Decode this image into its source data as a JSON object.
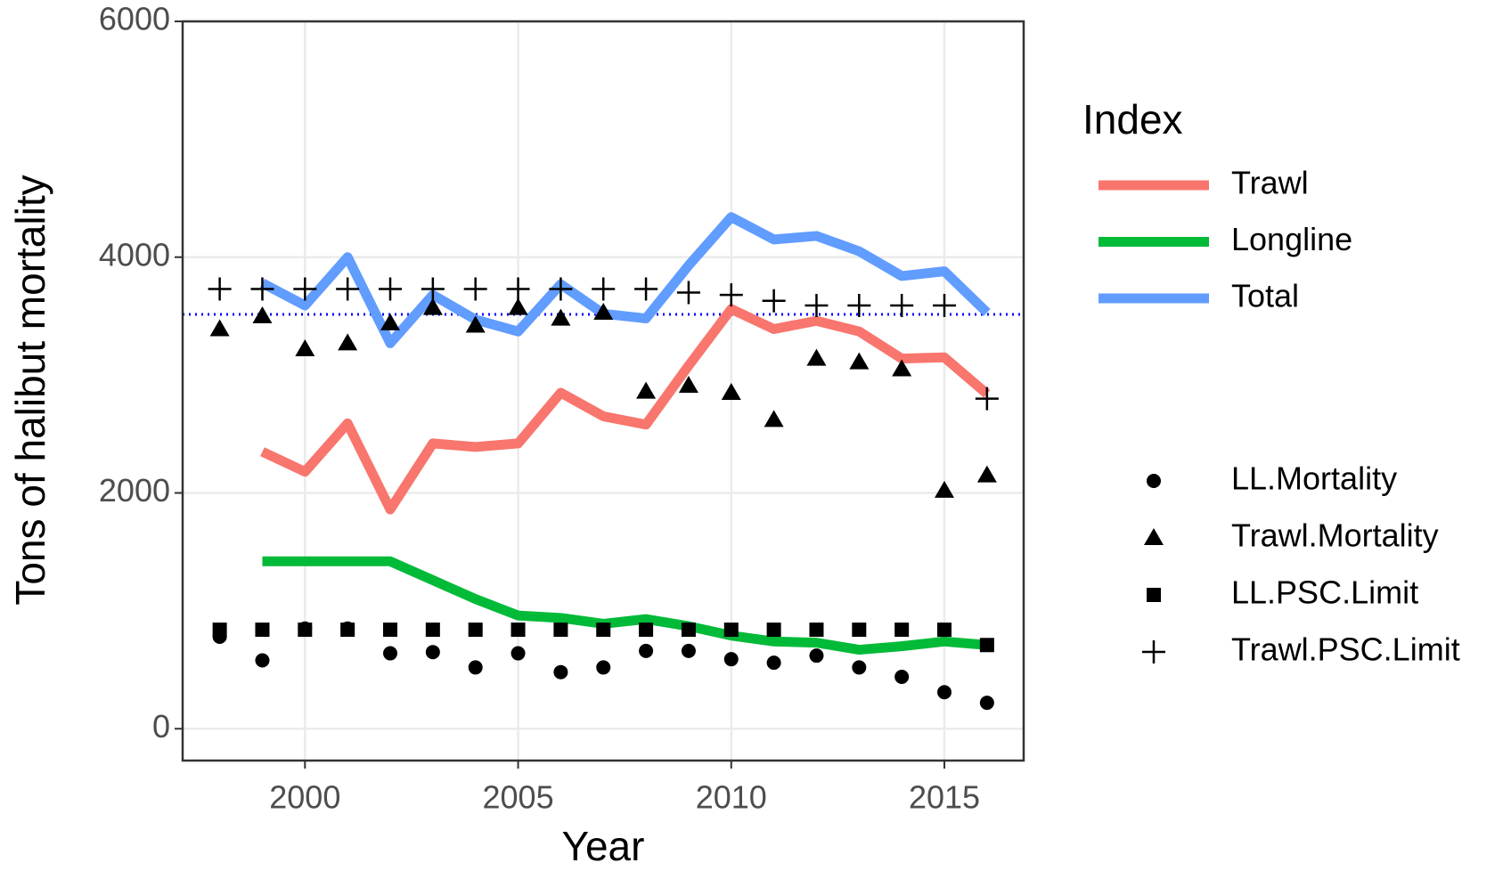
{
  "chart_data": {
    "type": "line",
    "x_label": "Year",
    "y_label": "Tons of halibut mortality",
    "legend_title": "Index",
    "x": [
      1998,
      1999,
      2000,
      2001,
      2002,
      2003,
      2004,
      2005,
      2006,
      2007,
      2008,
      2009,
      2010,
      2011,
      2012,
      2013,
      2014,
      2015,
      2016
    ],
    "xlim": [
      1997.13,
      2016.86
    ],
    "xticks": [
      2000,
      2005,
      2010,
      2015
    ],
    "ylim": [
      -270,
      6000
    ],
    "yticks": [
      0,
      2000,
      4000,
      6000
    ],
    "grid": true,
    "hline": {
      "value": 3515,
      "color": "#0000ff"
    },
    "series": [
      {
        "name": "Trawl",
        "mark": "line",
        "color": "#f8766d",
        "values": [
          null,
          2350,
          2180,
          2590,
          1860,
          2420,
          2390,
          2420,
          2850,
          2650,
          2580,
          3080,
          3560,
          3390,
          3460,
          3370,
          3140,
          3150,
          2840
        ]
      },
      {
        "name": "Longline",
        "mark": "line",
        "color": "#00ba38",
        "values": [
          null,
          1420,
          1420,
          1420,
          1420,
          1260,
          1100,
          960,
          940,
          890,
          930,
          870,
          790,
          740,
          730,
          670,
          700,
          740,
          710
        ]
      },
      {
        "name": "Total",
        "mark": "line",
        "color": "#619cff",
        "values": [
          null,
          3780,
          3590,
          4000,
          3270,
          3680,
          3470,
          3370,
          3770,
          3520,
          3480,
          3930,
          4340,
          4150,
          4180,
          4050,
          3840,
          3880,
          3530
        ]
      },
      {
        "name": "LL.Mortality",
        "mark": "circle",
        "color": "#000000",
        "values": [
          780,
          580,
          850,
          850,
          640,
          650,
          520,
          640,
          480,
          520,
          660,
          660,
          590,
          560,
          620,
          520,
          440,
          310,
          220
        ]
      },
      {
        "name": "Trawl.Mortality",
        "mark": "triangle",
        "color": "#000000",
        "values": [
          3390,
          3500,
          3220,
          3270,
          3440,
          3570,
          3420,
          3570,
          3480,
          3530,
          2860,
          2910,
          2850,
          2620,
          3140,
          3110,
          3050,
          2020,
          2150
        ]
      },
      {
        "name": "LL.PSC.Limit",
        "mark": "square",
        "color": "#000000",
        "values": [
          840,
          840,
          840,
          840,
          840,
          840,
          840,
          840,
          840,
          840,
          840,
          840,
          840,
          840,
          840,
          840,
          840,
          840,
          710
        ]
      },
      {
        "name": "Trawl.PSC.Limit",
        "mark": "plus",
        "color": "#000000",
        "values": [
          3730,
          3730,
          3730,
          3730,
          3730,
          3730,
          3730,
          3730,
          3730,
          3730,
          3730,
          3700,
          3680,
          3630,
          3590,
          3590,
          3590,
          3590,
          2800
        ]
      }
    ]
  }
}
